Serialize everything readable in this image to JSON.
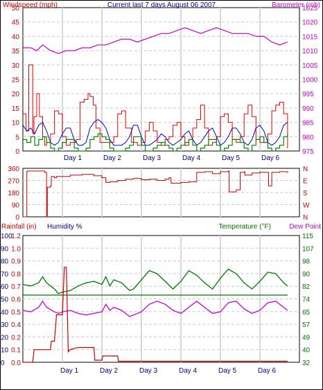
{
  "header": {
    "title": "Current last 7 days August 06 2007",
    "left_label": "Windspeed (mph)",
    "right_label": "Barometer (mb)"
  },
  "colors": {
    "wind_gust": "#cc0000",
    "wind_max": "#ee0000",
    "wind_avg": "#0000cc",
    "wind_low": "#008800",
    "barometer": "#cc00cc",
    "direction": "#cc0000",
    "rain": "#cc0000",
    "humidity": "#000088",
    "temperature": "#007700",
    "dewpoint": "#cc00cc",
    "grid": "#c8c8c8",
    "day_line": "#d8d8d8",
    "hline": "#007700"
  },
  "chart_data": [
    {
      "type": "line",
      "id": "wind",
      "title": "Current last 7 days August 06 2007",
      "ylabel_left": "Windspeed (mph)",
      "ylabel_right": "Barometer (mb)",
      "day_labels": [
        "Day 1",
        "Day 2",
        "Day 3",
        "Day 4",
        "Day 5",
        "Day 6"
      ],
      "ylim_left": [
        0,
        50
      ],
      "yticks_left": [
        0,
        5,
        10,
        15,
        20,
        25,
        30,
        35,
        40,
        45,
        50
      ],
      "ylim_right": [
        975,
        1025
      ],
      "yticks_right": [
        975,
        980,
        985,
        990,
        995,
        1000,
        1005,
        1010,
        1015,
        1020,
        1025
      ],
      "x_range": [
        0,
        7
      ],
      "series": [
        {
          "key": "gust",
          "x": [
            0,
            0.08,
            0.15,
            0.25,
            0.28,
            0.35,
            0.42,
            0.5,
            0.55,
            0.6,
            0.7,
            0.8,
            0.9,
            1,
            1.1,
            1.2,
            1.35,
            1.45,
            1.55,
            1.65,
            1.7,
            1.78,
            1.85,
            1.95,
            2.05,
            2.15,
            2.2,
            2.3,
            2.4,
            2.5,
            2.6,
            2.75,
            2.9,
            3,
            3.1,
            3.2,
            3.3,
            3.4,
            3.5,
            3.6,
            3.7,
            3.8,
            3.9,
            4,
            4.1,
            4.2,
            4.3,
            4.4,
            4.5,
            4.6,
            4.7,
            4.8,
            4.9,
            5,
            5.1,
            5.2,
            5.3,
            5.4,
            5.5,
            5.6,
            5.7,
            5.8,
            5.9,
            6,
            6.1,
            6.2,
            6.3,
            6.4,
            6.5,
            6.6,
            6.7
          ],
          "values": [
            13,
            7,
            30,
            6,
            12,
            20,
            12,
            5,
            2,
            3,
            6,
            14,
            13,
            5,
            2,
            3,
            4,
            17,
            18,
            20,
            19,
            16,
            8,
            3,
            3,
            3,
            3,
            5,
            13,
            14,
            8,
            3,
            2,
            3,
            7,
            10,
            7,
            3,
            2,
            4,
            5,
            9,
            10,
            5,
            2,
            4,
            8,
            11,
            16,
            8,
            2,
            3,
            5,
            12,
            13,
            10,
            4,
            3,
            5,
            13,
            16,
            12,
            4,
            3,
            3,
            6,
            14,
            16,
            17,
            13,
            1
          ]
        },
        {
          "key": "avg",
          "x": [
            0,
            0.1,
            0.2,
            0.3,
            0.4,
            0.5,
            0.6,
            0.7,
            0.8,
            0.9,
            1,
            1.1,
            1.2,
            1.3,
            1.4,
            1.5,
            1.6,
            1.7,
            1.8,
            1.9,
            2,
            2.1,
            2.2,
            2.3,
            2.4,
            2.5,
            2.6,
            2.7,
            2.8,
            2.9,
            3,
            3.1,
            3.2,
            3.3,
            3.4,
            3.5,
            3.6,
            3.7,
            3.8,
            3.9,
            4,
            4.1,
            4.2,
            4.3,
            4.4,
            4.5,
            4.6,
            4.7,
            4.8,
            4.9,
            5,
            5.1,
            5.2,
            5.3,
            5.4,
            5.5,
            5.6,
            5.7,
            5.8,
            5.9,
            6,
            6.1,
            6.2,
            6.3,
            6.4,
            6.5,
            6.6,
            6.7
          ],
          "values": [
            9,
            7,
            8,
            6,
            9,
            10,
            7,
            3,
            2,
            3,
            6,
            8,
            8,
            4,
            2,
            2,
            3,
            8,
            10,
            11,
            10,
            8,
            4,
            2,
            2,
            2,
            3,
            5,
            9,
            9,
            5,
            2,
            2,
            3,
            4,
            6,
            5,
            3,
            2,
            3,
            4,
            6,
            7,
            4,
            2,
            3,
            5,
            7,
            8,
            5,
            2,
            3,
            5,
            8,
            8,
            6,
            3,
            2,
            4,
            8,
            9,
            7,
            3,
            2,
            3,
            5,
            9,
            10
          ]
        },
        {
          "key": "low",
          "x": [
            0,
            0.1,
            0.2,
            0.3,
            0.4,
            0.5,
            0.6,
            0.7,
            0.8,
            0.9,
            1,
            1.1,
            1.2,
            1.3,
            1.4,
            1.5,
            1.6,
            1.7,
            1.8,
            1.9,
            2,
            2.1,
            2.2,
            2.3,
            2.4,
            2.5,
            2.6,
            2.7,
            2.8,
            2.9,
            3,
            3.1,
            3.2,
            3.3,
            3.4,
            3.5,
            3.6,
            3.7,
            3.8,
            3.9,
            4,
            4.1,
            4.2,
            4.3,
            4.4,
            4.5,
            4.6,
            4.7,
            4.8,
            4.9,
            5,
            5.1,
            5.2,
            5.3,
            5.4,
            5.5,
            5.6,
            5.7,
            5.8,
            5.9,
            6,
            6.1,
            6.2,
            6.3,
            6.4,
            6.5,
            6.6,
            6.7
          ],
          "values": [
            4,
            3,
            5,
            2,
            4,
            5,
            3,
            1,
            0,
            1,
            3,
            4,
            4,
            1,
            0,
            0,
            1,
            4,
            5,
            6,
            5,
            4,
            1,
            0,
            0,
            0,
            1,
            2,
            5,
            5,
            2,
            0,
            0,
            1,
            2,
            3,
            2,
            1,
            0,
            1,
            2,
            3,
            4,
            2,
            0,
            1,
            2,
            4,
            4,
            2,
            0,
            1,
            2,
            4,
            4,
            3,
            1,
            0,
            2,
            4,
            5,
            3,
            1,
            0,
            1,
            2,
            5,
            6
          ]
        },
        {
          "key": "barometer",
          "x": [
            0,
            0.2,
            0.35,
            0.5,
            0.7,
            0.9,
            1.1,
            1.3,
            1.5,
            1.7,
            1.9,
            2.1,
            2.3,
            2.5,
            2.7,
            2.9,
            3.1,
            3.3,
            3.5,
            3.7,
            3.9,
            4.1,
            4.3,
            4.5,
            4.7,
            4.9,
            5.1,
            5.3,
            5.5,
            5.7,
            5.9,
            6.1,
            6.3,
            6.5,
            6.7
          ],
          "values": [
            1011,
            1011,
            1010,
            1012,
            1010,
            1009,
            1010,
            1010,
            1011,
            1011,
            1012,
            1012,
            1013,
            1014,
            1014,
            1013,
            1014,
            1015,
            1016,
            1016,
            1017,
            1018,
            1017,
            1016,
            1017,
            1018,
            1017,
            1016,
            1016,
            1016,
            1015,
            1015,
            1013,
            1012,
            1013
          ]
        }
      ]
    },
    {
      "type": "line",
      "id": "direction",
      "yticks_left": [
        0,
        90,
        180,
        270,
        360
      ],
      "yticks_right": [
        "N",
        "W",
        "S",
        "E",
        "N"
      ],
      "ylim": [
        0,
        360
      ],
      "x_range": [
        0,
        7
      ],
      "series": [
        {
          "key": "direction",
          "x": [
            0,
            0.05,
            0.08,
            0.1,
            0.12,
            0.5,
            0.55,
            0.6,
            0.62,
            0.7,
            0.72,
            0.8,
            0.85,
            1,
            1.2,
            1.5,
            1.8,
            2,
            2.1,
            2.2,
            2.4,
            2.6,
            2.8,
            3,
            3.2,
            3.4,
            3.6,
            3.7,
            3.75,
            4,
            4.2,
            4.4,
            4.6,
            4.8,
            5,
            5.2,
            5.22,
            5.4,
            5.5,
            5.6,
            5.62,
            5.8,
            6,
            6.2,
            6.22,
            6.3,
            6.5,
            6.7,
            6.72
          ],
          "values": [
            0,
            0,
            0,
            335,
            340,
            340,
            330,
            0,
            220,
            230,
            300,
            290,
            300,
            300,
            310,
            315,
            305,
            290,
            255,
            260,
            270,
            280,
            285,
            275,
            280,
            270,
            280,
            290,
            250,
            255,
            260,
            330,
            335,
            320,
            335,
            340,
            185,
            200,
            330,
            335,
            310,
            325,
            330,
            330,
            230,
            330,
            335,
            330,
            330
          ]
        }
      ]
    },
    {
      "type": "line",
      "id": "climate",
      "ylabel_left_1": "Rainfall (in)",
      "ylabel_left_2": "Humidity %",
      "ylabel_right_1": "Temperature (°F)",
      "ylabel_right_2": "Dew Point",
      "day_labels": [
        "Day 1",
        "Day 2",
        "Day 3",
        "Day 4",
        "Day 5",
        "Day 6"
      ],
      "yticks_humidity": [
        0,
        10,
        20,
        30,
        40,
        50,
        60,
        70,
        80,
        90,
        100
      ],
      "yticks_rain": [
        0.0,
        0.1,
        0.2,
        0.4,
        0.5,
        0.6,
        0.7,
        0.8,
        0.9,
        1.0,
        1.2
      ],
      "yticks_temp": [
        32,
        40,
        49,
        57,
        65,
        74,
        82,
        90,
        98,
        107,
        115
      ],
      "ylim_temp": [
        32,
        115
      ],
      "ylim_rain": [
        0,
        1.2
      ],
      "x_range": [
        0,
        7
      ],
      "series": [
        {
          "key": "temperature",
          "x": [
            0,
            0.2,
            0.4,
            0.5,
            0.6,
            0.8,
            0.9,
            1,
            1.2,
            1.4,
            1.6,
            1.8,
            2,
            2.1,
            2.2,
            2.3,
            2.5,
            2.7,
            2.8,
            3,
            3.2,
            3.4,
            3.6,
            3.8,
            4,
            4.2,
            4.4,
            4.6,
            4.8,
            5,
            5.2,
            5.4,
            5.6,
            5.8,
            6,
            6.2,
            6.4,
            6.6,
            6.7
          ],
          "values": [
            83,
            82,
            84,
            88,
            84,
            80,
            77,
            78,
            79,
            82,
            84,
            85,
            83,
            88,
            82,
            86,
            84,
            79,
            80,
            86,
            92,
            90,
            85,
            80,
            85,
            92,
            89,
            84,
            80,
            87,
            93,
            90,
            84,
            80,
            85,
            91,
            90,
            84,
            82
          ]
        },
        {
          "key": "dewpoint",
          "x": [
            0,
            0.2,
            0.4,
            0.5,
            0.6,
            0.8,
            0.9,
            1,
            1.2,
            1.4,
            1.6,
            1.8,
            2,
            2.1,
            2.2,
            2.3,
            2.5,
            2.7,
            2.8,
            3,
            3.2,
            3.4,
            3.6,
            3.8,
            4,
            4.2,
            4.4,
            4.6,
            4.8,
            5,
            5.2,
            5.4,
            5.6,
            5.8,
            6,
            6.2,
            6.4,
            6.6,
            6.7
          ],
          "values": [
            66,
            65,
            68,
            72,
            68,
            65,
            64,
            65,
            66,
            64,
            63,
            64,
            65,
            70,
            66,
            68,
            66,
            62,
            63,
            65,
            70,
            72,
            70,
            66,
            64,
            68,
            72,
            68,
            64,
            65,
            71,
            72,
            67,
            64,
            66,
            71,
            72,
            68,
            66
          ]
        },
        {
          "key": "hline",
          "x": [
            0,
            6.7
          ],
          "values": [
            76,
            76
          ]
        },
        {
          "key": "rain",
          "x": [
            0,
            0.25,
            0.28,
            0.7,
            0.72,
            0.8,
            0.85,
            1,
            1.05,
            1.1,
            1.15,
            1.2,
            1.4,
            1.8,
            1.82,
            2,
            2.02,
            2.4,
            2.42,
            2.8,
            2.82,
            6.7
          ],
          "values": [
            0,
            0,
            0.12,
            0.12,
            0.2,
            0.2,
            0.45,
            0.45,
            0.9,
            0.9,
            0.1,
            0.12,
            0.14,
            0.14,
            0.02,
            0.02,
            0.06,
            0.06,
            0.01,
            0.01,
            0.01,
            0.01
          ]
        }
      ]
    }
  ]
}
